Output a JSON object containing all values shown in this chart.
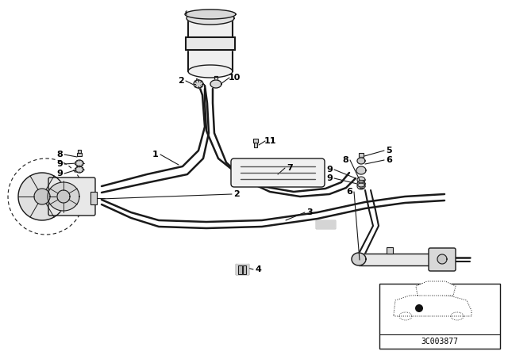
{
  "bg_color": "#ffffff",
  "line_color": "#1a1a1a",
  "text_color": "#000000",
  "diagram_code": "3C003877",
  "figsize": [
    6.4,
    4.48
  ],
  "dpi": 100
}
